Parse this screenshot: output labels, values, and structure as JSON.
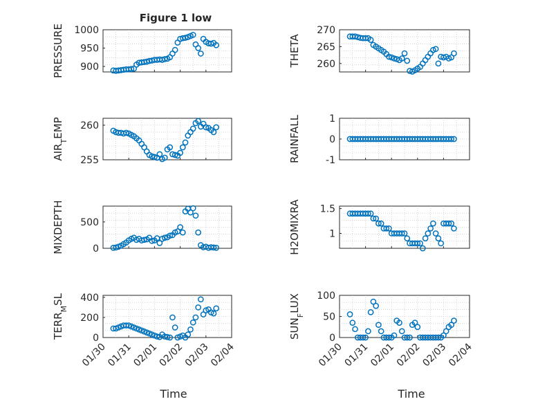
{
  "figure": {
    "title": "Figure 1 low",
    "xlabel": "Time",
    "series_color": "#0072BD",
    "xtick_labels": [
      "01/30",
      "01/31",
      "02/01",
      "02/02",
      "02/03",
      "02/04"
    ]
  },
  "chart_data": [
    {
      "type": "scatter",
      "ylabel": "PRESSURE",
      "ylabel_sub": "",
      "ylim": [
        885,
        1000
      ],
      "yticks": [
        900,
        950,
        1000
      ],
      "xlim": [
        0,
        5
      ],
      "grid": true,
      "x": [
        0.4,
        0.5,
        0.6,
        0.7,
        0.8,
        0.9,
        1.0,
        1.1,
        1.2,
        1.3,
        1.4,
        1.5,
        1.6,
        1.7,
        1.8,
        1.9,
        2.0,
        2.1,
        2.2,
        2.3,
        2.4,
        2.5,
        2.6,
        2.7,
        2.8,
        2.9,
        3.0,
        3.1,
        3.2,
        3.3,
        3.4,
        3.5,
        3.6,
        3.7,
        3.8,
        3.9,
        4.0,
        4.1,
        4.2,
        4.3,
        4.4
      ],
      "y": [
        889,
        888,
        889,
        890,
        891,
        892,
        892,
        893,
        894,
        905,
        910,
        911,
        912,
        913,
        915,
        916,
        918,
        918,
        919,
        918,
        920,
        921,
        925,
        935,
        945,
        965,
        975,
        977,
        978,
        980,
        983,
        986,
        960,
        950,
        935,
        975,
        967,
        963,
        962,
        964,
        958
      ]
    },
    {
      "type": "scatter",
      "ylabel": "THETA",
      "ylabel_sub": "",
      "ylim": [
        257.5,
        270
      ],
      "yticks": [
        260,
        265,
        270
      ],
      "xlim": [
        0,
        5
      ],
      "grid": true,
      "x": [
        0.4,
        0.5,
        0.6,
        0.7,
        0.8,
        0.9,
        1.0,
        1.1,
        1.2,
        1.3,
        1.4,
        1.5,
        1.6,
        1.7,
        1.8,
        1.9,
        2.0,
        2.1,
        2.2,
        2.3,
        2.4,
        2.5,
        2.6,
        2.7,
        2.8,
        2.9,
        3.0,
        3.1,
        3.2,
        3.3,
        3.4,
        3.5,
        3.6,
        3.7,
        3.8,
        3.9,
        4.0,
        4.1,
        4.2,
        4.3,
        4.4
      ],
      "y": [
        268,
        268,
        268,
        267.8,
        267.6,
        267.5,
        267.5,
        267.5,
        267,
        265.5,
        265,
        264.5,
        264,
        263.5,
        262.8,
        262,
        261.8,
        261.5,
        261.3,
        261,
        261.5,
        263,
        260.8,
        257.8,
        257.6,
        258,
        258.5,
        259,
        260,
        261,
        262,
        263,
        264,
        264.3,
        260,
        262,
        261.8,
        262,
        261.5,
        261.8,
        263
      ]
    },
    {
      "type": "scatter",
      "ylabel": "AIR",
      "ylabel_sub": "T",
      "ylabel_tail": "EMP",
      "ylim": [
        255,
        261
      ],
      "yticks": [
        255,
        260
      ],
      "xlim": [
        0,
        5
      ],
      "grid": true,
      "x": [
        0.4,
        0.5,
        0.6,
        0.7,
        0.8,
        0.9,
        1.0,
        1.1,
        1.2,
        1.3,
        1.4,
        1.5,
        1.6,
        1.7,
        1.8,
        1.9,
        2.0,
        2.1,
        2.2,
        2.3,
        2.4,
        2.5,
        2.6,
        2.7,
        2.8,
        2.9,
        3.0,
        3.1,
        3.2,
        3.3,
        3.4,
        3.5,
        3.6,
        3.7,
        3.8,
        3.9,
        4.0,
        4.1,
        4.2,
        4.3,
        4.4
      ],
      "y": [
        259.2,
        259,
        258.9,
        258.9,
        258.8,
        258.9,
        258.8,
        258.6,
        258.4,
        258.1,
        257.8,
        257.3,
        256.8,
        256.2,
        255.7,
        255.5,
        255.4,
        255.3,
        255.8,
        255.1,
        255.3,
        256.5,
        256.8,
        255.8,
        255.7,
        255.6,
        256,
        256.8,
        257.5,
        258.5,
        259,
        259.5,
        260.3,
        260.6,
        259.8,
        260.2,
        259.7,
        259.6,
        259.3,
        259,
        259.7
      ]
    },
    {
      "type": "scatter",
      "ylabel": "RAINFALL",
      "ylabel_sub": "",
      "ylim": [
        -1,
        1
      ],
      "yticks": [
        -1,
        0,
        1
      ],
      "xlim": [
        0,
        5
      ],
      "grid": true,
      "x": [
        0.4,
        0.5,
        0.6,
        0.7,
        0.8,
        0.9,
        1.0,
        1.1,
        1.2,
        1.3,
        1.4,
        1.5,
        1.6,
        1.7,
        1.8,
        1.9,
        2.0,
        2.1,
        2.2,
        2.3,
        2.4,
        2.5,
        2.6,
        2.7,
        2.8,
        2.9,
        3.0,
        3.1,
        3.2,
        3.3,
        3.4,
        3.5,
        3.6,
        3.7,
        3.8,
        3.9,
        4.0,
        4.1,
        4.2,
        4.3,
        4.4
      ],
      "y": [
        0,
        0,
        0,
        0,
        0,
        0,
        0,
        0,
        0,
        0,
        0,
        0,
        0,
        0,
        0,
        0,
        0,
        0,
        0,
        0,
        0,
        0,
        0,
        0,
        0,
        0,
        0,
        0,
        0,
        0,
        0,
        0,
        0,
        0,
        0,
        0,
        0,
        0,
        0,
        0,
        0
      ]
    },
    {
      "type": "scatter",
      "ylabel": "MIXDEPTH",
      "ylabel_sub": "",
      "ylim": [
        0,
        800
      ],
      "yticks": [
        0,
        500
      ],
      "xlim": [
        0,
        5
      ],
      "grid": true,
      "x": [
        0.4,
        0.5,
        0.6,
        0.7,
        0.8,
        0.9,
        1.0,
        1.1,
        1.2,
        1.3,
        1.4,
        1.5,
        1.6,
        1.7,
        1.8,
        1.9,
        2.0,
        2.1,
        2.2,
        2.3,
        2.4,
        2.5,
        2.6,
        2.7,
        2.8,
        2.9,
        3.0,
        3.1,
        3.2,
        3.3,
        3.4,
        3.5,
        3.6,
        3.7,
        3.8,
        3.9,
        4.0,
        4.1,
        4.2,
        4.3,
        4.4
      ],
      "y": [
        10,
        15,
        30,
        50,
        80,
        110,
        150,
        180,
        200,
        160,
        180,
        150,
        160,
        170,
        200,
        140,
        150,
        190,
        100,
        180,
        200,
        210,
        240,
        250,
        300,
        320,
        400,
        300,
        700,
        750,
        680,
        760,
        620,
        300,
        60,
        20,
        30,
        10,
        20,
        15,
        10
      ]
    },
    {
      "type": "scatter",
      "ylabel": "H2OMIXRA",
      "ylabel_sub": "",
      "ylim": [
        0.7,
        1.55
      ],
      "yticks": [
        1,
        1.5
      ],
      "xlim": [
        0,
        5
      ],
      "grid": true,
      "x": [
        0.4,
        0.5,
        0.6,
        0.7,
        0.8,
        0.9,
        1.0,
        1.1,
        1.2,
        1.3,
        1.4,
        1.5,
        1.6,
        1.7,
        1.8,
        1.9,
        2.0,
        2.1,
        2.2,
        2.3,
        2.4,
        2.5,
        2.6,
        2.7,
        2.8,
        2.9,
        3.0,
        3.1,
        3.2,
        3.3,
        3.4,
        3.5,
        3.6,
        3.7,
        3.8,
        3.9,
        4.0,
        4.1,
        4.2,
        4.3,
        4.4
      ],
      "y": [
        1.4,
        1.4,
        1.4,
        1.4,
        1.4,
        1.4,
        1.4,
        1.4,
        1.4,
        1.3,
        1.3,
        1.2,
        1.2,
        1.1,
        1.1,
        1.1,
        1.0,
        1.0,
        1.0,
        1.0,
        1.0,
        1.0,
        0.9,
        0.8,
        0.8,
        0.8,
        0.8,
        0.8,
        0.7,
        0.9,
        1.0,
        1.1,
        1.2,
        1.0,
        0.9,
        0.8,
        1.2,
        1.2,
        1.2,
        1.2,
        1.1
      ]
    },
    {
      "type": "scatter",
      "ylabel": "TERR",
      "ylabel_sub": "M",
      "ylabel_tail": "SL",
      "ylim": [
        0,
        420
      ],
      "yticks": [
        0,
        200,
        400
      ],
      "xlim": [
        0,
        5
      ],
      "grid": true,
      "x": [
        0.4,
        0.5,
        0.6,
        0.7,
        0.8,
        0.9,
        1.0,
        1.1,
        1.2,
        1.3,
        1.4,
        1.5,
        1.6,
        1.7,
        1.8,
        1.9,
        2.0,
        2.1,
        2.2,
        2.3,
        2.4,
        2.5,
        2.6,
        2.7,
        2.8,
        2.9,
        3.0,
        3.1,
        3.2,
        3.3,
        3.4,
        3.5,
        3.6,
        3.7,
        3.8,
        3.9,
        4.0,
        4.1,
        4.2,
        4.3,
        4.4
      ],
      "y": [
        90,
        90,
        100,
        110,
        120,
        120,
        120,
        110,
        100,
        90,
        80,
        70,
        60,
        50,
        40,
        30,
        20,
        10,
        5,
        30,
        10,
        5,
        0,
        200,
        100,
        0,
        10,
        20,
        0,
        30,
        80,
        150,
        200,
        300,
        380,
        230,
        270,
        280,
        250,
        240,
        290
      ]
    },
    {
      "type": "scatter",
      "ylabel": "SUN",
      "ylabel_sub": "F",
      "ylabel_tail": "LUX",
      "ylim": [
        0,
        100
      ],
      "yticks": [
        0,
        50,
        100
      ],
      "xlim": [
        0,
        5
      ],
      "grid": true,
      "x": [
        0.4,
        0.5,
        0.6,
        0.7,
        0.8,
        0.9,
        1.0,
        1.1,
        1.2,
        1.3,
        1.4,
        1.5,
        1.6,
        1.7,
        1.8,
        1.9,
        2.0,
        2.1,
        2.2,
        2.3,
        2.4,
        2.5,
        2.6,
        2.7,
        2.8,
        2.9,
        3.0,
        3.1,
        3.2,
        3.3,
        3.4,
        3.5,
        3.6,
        3.7,
        3.8,
        3.9,
        4.0,
        4.1,
        4.2,
        4.3,
        4.4
      ],
      "y": [
        55,
        35,
        20,
        0,
        0,
        0,
        0,
        15,
        60,
        85,
        75,
        30,
        15,
        0,
        0,
        0,
        0,
        5,
        40,
        35,
        15,
        0,
        0,
        0,
        30,
        35,
        25,
        0,
        0,
        0,
        0,
        0,
        0,
        0,
        0,
        0,
        5,
        15,
        25,
        30,
        40
      ]
    }
  ]
}
